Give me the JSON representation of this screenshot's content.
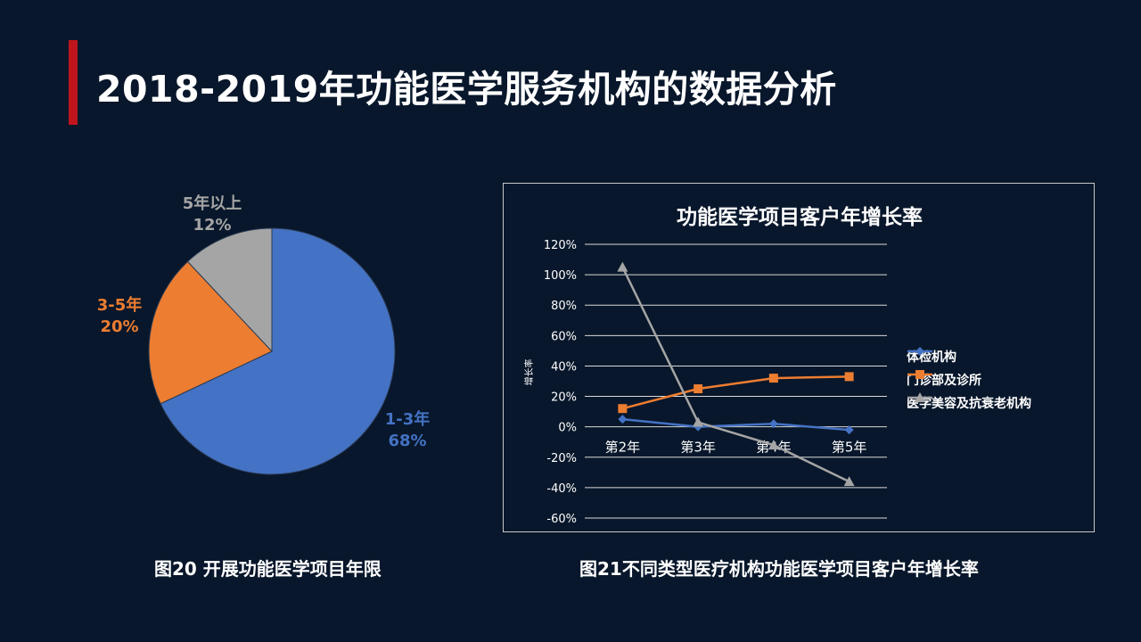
{
  "slide": {
    "title": "2018-2019年功能医学服务机构的数据分析",
    "accent_color": "#c0151d"
  },
  "pie": {
    "caption": "图20 开展功能医学项目年限",
    "chart_data": {
      "type": "pie",
      "slices": [
        {
          "name": "1-3年",
          "value": 68,
          "label": "68%",
          "color": "#4472c4"
        },
        {
          "name": "3-5年",
          "value": 20,
          "label": "20%",
          "color": "#ed7d31"
        },
        {
          "name": "5年以上",
          "value": 12,
          "label": "12%",
          "color": "#a5a5a5"
        }
      ]
    }
  },
  "line": {
    "caption": "图21不同类型医疗机构功能医学项目客户年增长率",
    "chart_data": {
      "type": "line",
      "title": "功能医学项目客户年增长率",
      "ylabel": "增长率",
      "categories": [
        "第2年",
        "第3年",
        "第4年",
        "第5年"
      ],
      "y_ticks": [
        "120%",
        "100%",
        "80%",
        "60%",
        "40%",
        "20%",
        "0%",
        "-20%",
        "-40%",
        "-60%"
      ],
      "ylim": [
        -60,
        120
      ],
      "grid": true,
      "legend_position": "right",
      "series": [
        {
          "name": "体检机构",
          "marker": "diamond",
          "color": "#4472c4",
          "values": [
            5,
            0,
            2,
            -2
          ]
        },
        {
          "name": "门诊部及诊所",
          "marker": "square",
          "color": "#ed7d31",
          "values": [
            12,
            25,
            32,
            33
          ]
        },
        {
          "name": "医学美容及抗衰老机构",
          "marker": "triangle",
          "color": "#a5a5a5",
          "values": [
            105,
            3,
            -12,
            -36
          ]
        }
      ]
    }
  }
}
